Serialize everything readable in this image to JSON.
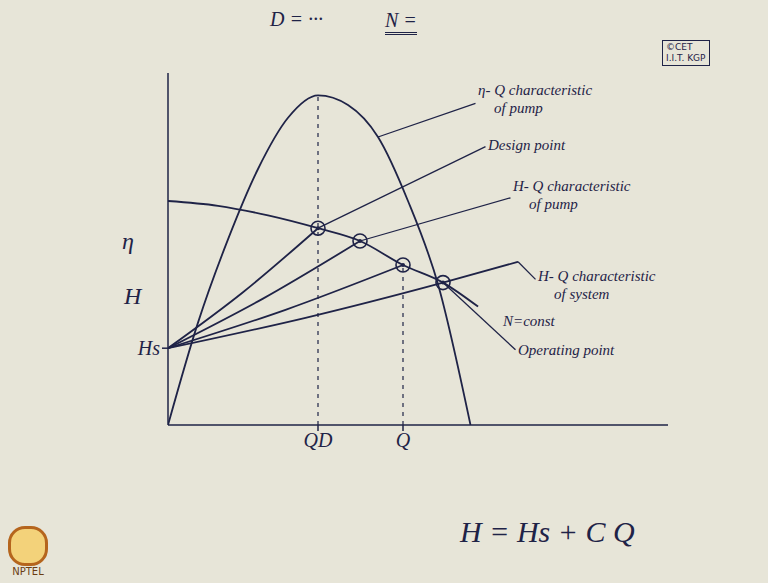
{
  "chart_data": {
    "type": "line",
    "title": "D = ···",
    "subtitle": "N =",
    "ylabel": [
      "η",
      "H"
    ],
    "xlim": [
      0,
      10
    ],
    "ylim": [
      0,
      11
    ],
    "xticks": [
      {
        "value": 3.0,
        "label": "QD"
      },
      {
        "value": 4.7,
        "label": "Q"
      }
    ],
    "yticks": [
      {
        "value": 2.4,
        "label": "Hs"
      }
    ],
    "grid": false,
    "series": [
      {
        "type": "line",
        "color": "#1f2347",
        "x": [
          0,
          0.6,
          1.2,
          1.8,
          2.4,
          3.0,
          3.6,
          4.2,
          4.8,
          5.4,
          6.05
        ],
        "values": [
          0,
          3.2,
          5.8,
          8.0,
          9.6,
          10.3,
          10.0,
          9.0,
          7.0,
          4.4,
          0
        ]
      },
      {
        "type": "line",
        "color": "#1f2347",
        "x": [
          0,
          1,
          2,
          3.0,
          3.84,
          4.7,
          5.5,
          6.2
        ],
        "values": [
          7.0,
          6.85,
          6.55,
          6.15,
          5.75,
          5.0,
          4.45,
          3.7
        ]
      },
      {
        "type": "line",
        "color": "#1f2347",
        "x": [
          0,
          1.5,
          3.0
        ],
        "values": [
          2.4,
          4.15,
          6.15
        ]
      },
      {
        "type": "line",
        "color": "#1f2347",
        "x": [
          0,
          1.9,
          3.84
        ],
        "values": [
          2.4,
          3.95,
          5.75
        ]
      },
      {
        "type": "line",
        "color": "#1f2347",
        "x": [
          0,
          2.35,
          4.7
        ],
        "values": [
          2.4,
          3.6,
          5.0
        ]
      },
      {
        "type": "line",
        "color": "#1f2347",
        "x": [
          0,
          2.75,
          5.5,
          7.0
        ],
        "values": [
          2.4,
          3.35,
          4.45,
          5.1
        ]
      },
      {
        "type": "scatter",
        "marker": "circle",
        "color": "#1f2347",
        "x": [
          3.0,
          3.84,
          4.7,
          5.5
        ],
        "values": [
          6.15,
          5.75,
          5.0,
          4.45
        ]
      }
    ],
    "annotations": [
      "η- Q characteristic of pump",
      "Design point",
      "H- Q characteristic of pump",
      "H- Q characteristic of system",
      "N=const",
      "Operating point"
    ],
    "formula": "H = Hs + C Q",
    "watermark": [
      "©CET",
      "I.I.T. KGP"
    ],
    "logo": "NPTEL"
  }
}
